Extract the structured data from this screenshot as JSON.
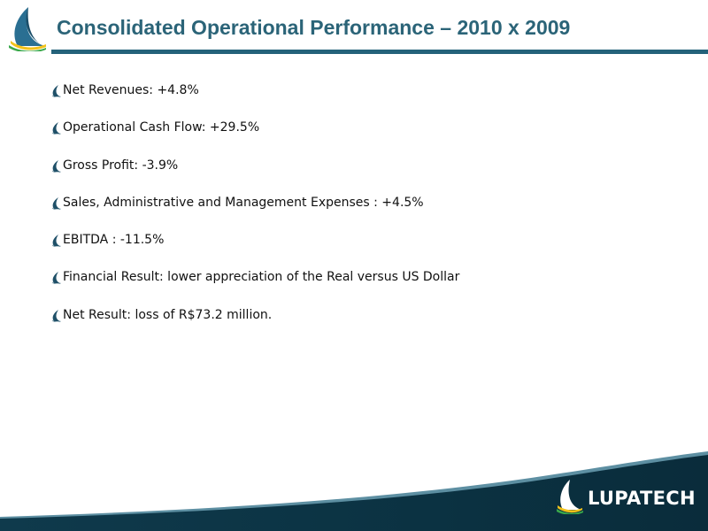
{
  "header": {
    "title": "Consolidated Operational Performance – 2010 x 2009",
    "logo_icon": "sail-logo-icon",
    "rule_color": "#24627a"
  },
  "bullets": [
    {
      "text": "Net Revenues: +4.8%"
    },
    {
      "text": "Operational Cash Flow: +29.5%"
    },
    {
      "text": "Gross Profit: -3.9%"
    },
    {
      "text": "Sales, Administrative and Management Expenses : +4.5%"
    },
    {
      "text": "EBITDA : -11.5%"
    },
    {
      "text": "Financial Result: lower appreciation of the Real versus US Dollar"
    },
    {
      "text": "Net Result: loss of R$73.2 million."
    }
  ],
  "footer": {
    "brand_name": "LUPATECH",
    "brand_icon": "sail-logo-icon",
    "band_color": "#0c3444"
  }
}
